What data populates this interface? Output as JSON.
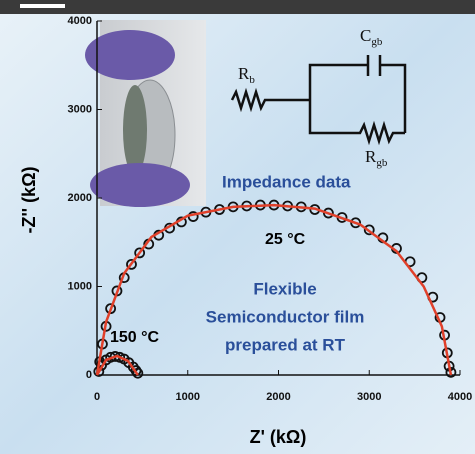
{
  "chart_data": {
    "type": "scatter",
    "xlabel": "Z' (kΩ)",
    "ylabel": "-Z'' (kΩ)",
    "xlim": [
      0,
      4000
    ],
    "ylim": [
      0,
      4000
    ],
    "xticks": [
      0,
      1000,
      2000,
      3000,
      4000
    ],
    "yticks": [
      0,
      1000,
      2000,
      3000,
      4000
    ],
    "series": [
      {
        "style": "markers",
        "color": "#111111",
        "x": [
          30,
          60,
          100,
          150,
          220,
          300,
          380,
          470,
          570,
          680,
          800,
          930,
          1060,
          1200,
          1350,
          1500,
          1650,
          1800,
          1950,
          2100,
          2250,
          2400,
          2550,
          2700,
          2850,
          3000,
          3150,
          3300,
          3450,
          3580,
          3700,
          3780,
          3830,
          3860,
          3880,
          3900
        ],
        "values": [
          150,
          350,
          550,
          750,
          950,
          1100,
          1250,
          1380,
          1480,
          1580,
          1660,
          1730,
          1790,
          1840,
          1870,
          1900,
          1910,
          1920,
          1920,
          1910,
          1900,
          1870,
          1830,
          1780,
          1720,
          1640,
          1550,
          1430,
          1280,
          1100,
          880,
          650,
          450,
          250,
          100,
          30
        ]
      },
      {
        "style": "markers",
        "color": "#111111",
        "x": [
          20,
          50,
          100,
          150,
          200,
          250,
          300,
          350,
          400,
          430,
          450
        ],
        "values": [
          40,
          110,
          170,
          200,
          210,
          200,
          180,
          140,
          90,
          50,
          20
        ]
      },
      {
        "style": "line",
        "color": "#e0402a",
        "x": [
          0,
          100,
          300,
          600,
          1000,
          1500,
          1950,
          2400,
          2900,
          3300,
          3600,
          3800,
          3900
        ],
        "values": [
          0,
          600,
          1150,
          1560,
          1800,
          1900,
          1920,
          1880,
          1700,
          1400,
          1000,
          550,
          0
        ]
      },
      {
        "style": "line",
        "color": "#e0402a",
        "x": [
          0,
          100,
          220,
          340,
          450
        ],
        "values": [
          0,
          170,
          215,
          160,
          0
        ]
      }
    ],
    "annotations": [
      "Impedance data",
      "25 °C",
      "150 °C",
      "Flexible",
      "Semiconductor film",
      "prepared at RT"
    ]
  },
  "circuit": {
    "labels": [
      {
        "symbol": "R",
        "subscript": "b"
      },
      {
        "symbol": "C",
        "subscript": "gb"
      },
      {
        "symbol": "R",
        "subscript": "gb"
      }
    ]
  }
}
